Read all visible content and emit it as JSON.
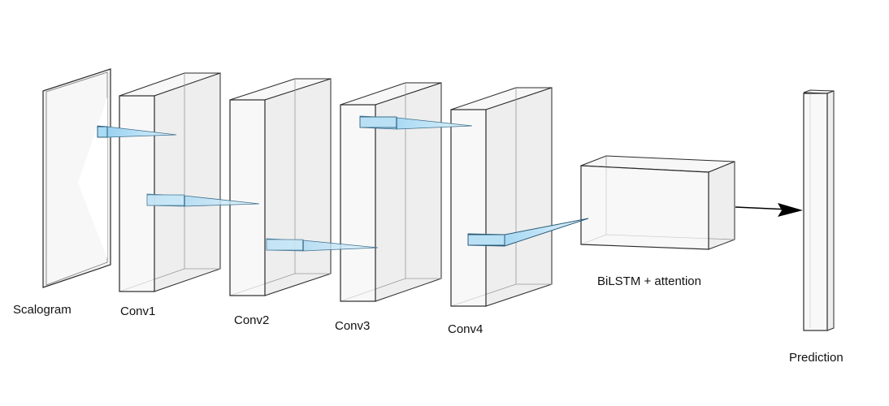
{
  "labels": {
    "scalogram": "Scalogram",
    "conv1": "Conv1",
    "conv2": "Conv2",
    "conv3": "Conv3",
    "conv4": "Conv4",
    "bilstm": "BiLSTM + attention",
    "prediction": "Prediction"
  },
  "colors": {
    "block_fill": "#f4f4f4",
    "block_fill_dark": "#e9e9e9",
    "edge": "#2b2b2b",
    "hidden_edge": "#9a9a9a",
    "kernel_fill": "#a9dbf5",
    "kernel_edge": "#3d6f8c",
    "arrow": "#000000"
  }
}
